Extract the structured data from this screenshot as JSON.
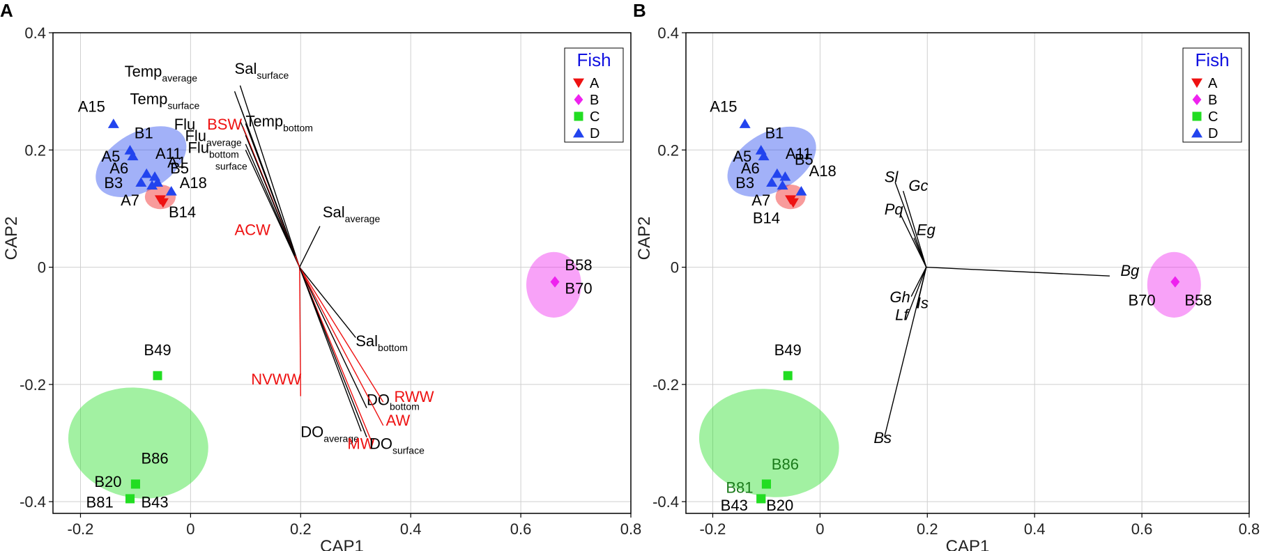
{
  "colors": {
    "A": "#ee1111",
    "B": "#ee22ee",
    "C": "#22dd22",
    "D": "#2244ee",
    "env_black": "#000000",
    "env_red": "#ee1111",
    "legend_title": "#1010e0"
  },
  "chart_data": [
    {
      "panel": "A",
      "type": "scatter",
      "xlabel": "CAP1",
      "ylabel": "CAP2",
      "xlim": [
        -0.25,
        0.8
      ],
      "ylim": [
        -0.42,
        0.4
      ],
      "xticks": [
        -0.2,
        0,
        0.2,
        0.4,
        0.6,
        0.8
      ],
      "xtick_labels": [
        "-0.2",
        "0",
        "0.2",
        "0.4",
        "0.6",
        "0.8"
      ],
      "yticks": [
        -0.4,
        -0.2,
        0,
        0.2,
        0.4
      ],
      "ytick_labels": [
        "-0.4",
        "-0.2",
        "0",
        "0.2",
        "0.4"
      ],
      "grid": true,
      "legend": {
        "title": "Fish",
        "placement": "top-right",
        "entries": [
          "A",
          "B",
          "C",
          "D"
        ]
      },
      "ellipses": [
        {
          "group": "D",
          "cx": -0.09,
          "cy": 0.18,
          "rx": 0.09,
          "ry": 0.05,
          "angle_deg": 30
        },
        {
          "group": "A",
          "cx": -0.055,
          "cy": 0.12,
          "rx": 0.028,
          "ry": 0.021,
          "angle_deg": 0
        },
        {
          "group": "B",
          "cx": 0.66,
          "cy": -0.03,
          "rx": 0.05,
          "ry": 0.056,
          "angle_deg": 0
        },
        {
          "group": "C",
          "cx": -0.095,
          "cy": -0.3,
          "rx": 0.1,
          "ry": 0.12,
          "angle_deg": 80
        }
      ],
      "points": [
        {
          "label": "A15",
          "group": "D",
          "x": -0.14,
          "y": 0.245,
          "lx": -0.18,
          "ly": 0.265
        },
        {
          "label": "B1",
          "group": "D",
          "x": -0.11,
          "y": 0.2,
          "lx": -0.085,
          "ly": 0.22
        },
        {
          "label": "A5",
          "group": "D",
          "x": -0.105,
          "y": 0.19,
          "lx": -0.145,
          "ly": 0.18
        },
        {
          "label": "A11",
          "group": "D",
          "x": -0.065,
          "y": 0.155,
          "lx": -0.04,
          "ly": 0.185
        },
        {
          "label": "A6",
          "group": "D",
          "x": -0.08,
          "y": 0.16,
          "lx": -0.13,
          "ly": 0.16
        },
        {
          "label": "A1",
          "group": "D",
          "x": -0.06,
          "y": 0.145,
          "lx": -0.025,
          "ly": 0.17
        },
        {
          "label": "B5",
          "group": "D",
          "x": -0.07,
          "y": 0.14,
          "lx": -0.02,
          "ly": 0.16
        },
        {
          "label": "B3",
          "group": "D",
          "x": -0.09,
          "y": 0.145,
          "lx": -0.14,
          "ly": 0.135
        },
        {
          "label": "A18",
          "group": "D",
          "x": -0.035,
          "y": 0.13,
          "lx": 0.005,
          "ly": 0.135
        },
        {
          "label": "A7",
          "group": "A",
          "x": -0.055,
          "y": 0.115,
          "lx": -0.11,
          "ly": 0.105
        },
        {
          "label": "B14",
          "group": "A",
          "x": -0.05,
          "y": 0.11,
          "lx": -0.015,
          "ly": 0.085
        },
        {
          "label": "B58",
          "group": "B",
          "x": 0.662,
          "y": -0.025,
          "lx": 0.705,
          "ly": -0.005
        },
        {
          "label": "B70",
          "group": "B",
          "x": 0.662,
          "y": -0.025,
          "lx": 0.705,
          "ly": -0.045
        },
        {
          "label": "B49",
          "group": "C",
          "x": -0.06,
          "y": -0.185,
          "lx": -0.06,
          "ly": -0.15
        },
        {
          "label": "B86",
          "group": "C",
          "x": -0.1,
          "y": -0.37,
          "lx": -0.065,
          "ly": -0.335
        },
        {
          "label": "B20",
          "group": "C",
          "x": -0.1,
          "y": -0.37,
          "lx": -0.15,
          "ly": -0.375
        },
        {
          "label": "B81",
          "group": "C",
          "x": -0.11,
          "y": -0.395,
          "lx": -0.165,
          "ly": -0.41
        },
        {
          "label": "B43",
          "group": "C",
          "x": -0.11,
          "y": -0.395,
          "lx": -0.065,
          "ly": -0.41
        }
      ],
      "origin": [
        0.198,
        0.0
      ],
      "vectors": [
        {
          "label": "Temp",
          "sub": "average",
          "color": "black",
          "x": 0.08,
          "y": 0.3,
          "lx": -0.12,
          "ly": 0.325
        },
        {
          "label": "Sal",
          "sub": "surface",
          "color": "black",
          "x": 0.09,
          "y": 0.31,
          "lx": 0.08,
          "ly": 0.33
        },
        {
          "label": "Temp",
          "sub": "surface",
          "color": "black",
          "x": 0.09,
          "y": 0.275,
          "lx": -0.11,
          "ly": 0.278
        },
        {
          "label": "Temp",
          "sub": "bottom",
          "color": "black",
          "x": 0.1,
          "y": 0.245,
          "lx": 0.1,
          "ly": 0.24
        },
        {
          "label": "Flu",
          "sub": "",
          "color": "black",
          "x": 0.09,
          "y": 0.25,
          "lx": -0.03,
          "ly": 0.235
        },
        {
          "label": "BSW",
          "sub": "",
          "color": "red",
          "x": 0.095,
          "y": 0.24,
          "lx": 0.03,
          "ly": 0.235
        },
        {
          "label": "Flu",
          "sub": "average",
          "color": "black",
          "x": 0.1,
          "y": 0.225,
          "lx": -0.01,
          "ly": 0.215
        },
        {
          "label": "Flu",
          "sub": "bottom",
          "color": "black",
          "x": 0.1,
          "y": 0.21,
          "lx": -0.005,
          "ly": 0.195
        },
        {
          "label": "",
          "sub": "surface",
          "color": "black",
          "x": 0.1,
          "y": 0.2,
          "lx": 0.045,
          "ly": 0.175
        },
        {
          "label": "Sal",
          "sub": "average",
          "color": "black",
          "x": 0.235,
          "y": 0.07,
          "lx": 0.24,
          "ly": 0.085
        },
        {
          "label": "ACW",
          "sub": "",
          "color": "red",
          "x": 0.19,
          "y": 0.02,
          "lx": 0.08,
          "ly": 0.055
        },
        {
          "label": "Sal",
          "sub": "bottom",
          "color": "black",
          "x": 0.3,
          "y": -0.12,
          "lx": 0.3,
          "ly": -0.135
        },
        {
          "label": "NVWW",
          "sub": "",
          "color": "red",
          "x": 0.2,
          "y": -0.22,
          "lx": 0.11,
          "ly": -0.2
        },
        {
          "label": "DO",
          "sub": "bottom",
          "color": "black",
          "x": 0.32,
          "y": -0.24,
          "lx": 0.32,
          "ly": -0.235
        },
        {
          "label": "RWW",
          "sub": "",
          "color": "red",
          "x": 0.35,
          "y": -0.23,
          "lx": 0.37,
          "ly": -0.23
        },
        {
          "label": "AW",
          "sub": "",
          "color": "red",
          "x": 0.35,
          "y": -0.27,
          "lx": 0.355,
          "ly": -0.27
        },
        {
          "label": "DO",
          "sub": "average",
          "color": "black",
          "x": 0.31,
          "y": -0.28,
          "lx": 0.2,
          "ly": -0.29
        },
        {
          "label": "MW",
          "sub": "",
          "color": "red",
          "x": 0.33,
          "y": -0.3,
          "lx": 0.285,
          "ly": -0.31
        },
        {
          "label": "DO",
          "sub": "surface",
          "color": "black",
          "x": 0.32,
          "y": -0.29,
          "lx": 0.325,
          "ly": -0.31
        }
      ]
    },
    {
      "panel": "B",
      "type": "scatter",
      "xlabel": "CAP1",
      "ylabel": "CAP2",
      "xlim": [
        -0.25,
        0.8
      ],
      "ylim": [
        -0.42,
        0.4
      ],
      "xticks": [
        -0.2,
        0,
        0.2,
        0.4,
        0.6,
        0.8
      ],
      "xtick_labels": [
        "-0.2",
        "0",
        "0.2",
        "0.4",
        "0.6",
        "0.8"
      ],
      "yticks": [
        -0.4,
        -0.2,
        0,
        0.2,
        0.4
      ],
      "ytick_labels": [
        "-0.4",
        "-0.2",
        "0",
        "0.2",
        "0.4"
      ],
      "grid": true,
      "legend": {
        "title": "Fish",
        "placement": "top-right",
        "entries": [
          "A",
          "B",
          "C",
          "D"
        ]
      },
      "ellipses": [
        {
          "group": "D",
          "cx": -0.09,
          "cy": 0.18,
          "rx": 0.09,
          "ry": 0.05,
          "angle_deg": 30
        },
        {
          "group": "A",
          "cx": -0.055,
          "cy": 0.12,
          "rx": 0.028,
          "ry": 0.021,
          "angle_deg": 0
        },
        {
          "group": "B",
          "cx": 0.66,
          "cy": -0.03,
          "rx": 0.05,
          "ry": 0.056,
          "angle_deg": 0
        },
        {
          "group": "C",
          "cx": -0.095,
          "cy": -0.3,
          "rx": 0.1,
          "ry": 0.12,
          "angle_deg": 80
        }
      ],
      "points": [
        {
          "label": "A15",
          "group": "D",
          "x": -0.14,
          "y": 0.245,
          "lx": -0.18,
          "ly": 0.265
        },
        {
          "label": "B1",
          "group": "D",
          "x": -0.11,
          "y": 0.2,
          "lx": -0.085,
          "ly": 0.22
        },
        {
          "label": "A5",
          "group": "D",
          "x": -0.105,
          "y": 0.19,
          "lx": -0.145,
          "ly": 0.18
        },
        {
          "label": "A11",
          "group": "D",
          "x": -0.065,
          "y": 0.155,
          "lx": -0.04,
          "ly": 0.185
        },
        {
          "label": "A6",
          "group": "D",
          "x": -0.08,
          "y": 0.16,
          "lx": -0.13,
          "ly": 0.16
        },
        {
          "label": "B5",
          "group": "D",
          "x": -0.07,
          "y": 0.14,
          "lx": -0.03,
          "ly": 0.175
        },
        {
          "label": "B3",
          "group": "D",
          "x": -0.09,
          "y": 0.145,
          "lx": -0.14,
          "ly": 0.135
        },
        {
          "label": "A18",
          "group": "D",
          "x": -0.035,
          "y": 0.13,
          "lx": 0.005,
          "ly": 0.155
        },
        {
          "label": "A7",
          "group": "A",
          "x": -0.055,
          "y": 0.115,
          "lx": -0.11,
          "ly": 0.105
        },
        {
          "label": "B14",
          "group": "A",
          "x": -0.05,
          "y": 0.11,
          "lx": -0.1,
          "ly": 0.075
        },
        {
          "label": "B70",
          "group": "B",
          "x": 0.662,
          "y": -0.025,
          "lx": 0.6,
          "ly": -0.065
        },
        {
          "label": "B58",
          "group": "B",
          "x": 0.662,
          "y": -0.025,
          "lx": 0.705,
          "ly": -0.065
        },
        {
          "label": "B49",
          "group": "C",
          "x": -0.06,
          "y": -0.185,
          "lx": -0.06,
          "ly": -0.15
        },
        {
          "label": "B86",
          "group": "C",
          "x": -0.1,
          "y": -0.37,
          "lx": -0.065,
          "ly": -0.345
        },
        {
          "label": "B81",
          "group": "C",
          "x": -0.1,
          "y": -0.37,
          "lx": -0.15,
          "ly": -0.385
        },
        {
          "label": "B43",
          "group": "C",
          "x": -0.11,
          "y": -0.395,
          "lx": -0.16,
          "ly": -0.415
        },
        {
          "label": "B20",
          "group": "C",
          "x": -0.11,
          "y": -0.395,
          "lx": -0.075,
          "ly": -0.415
        }
      ],
      "origin": [
        0.198,
        0.0
      ],
      "vectors": [
        {
          "label": "Sl",
          "x": 0.14,
          "y": 0.145,
          "lx": 0.12,
          "ly": 0.145
        },
        {
          "label": "Gc",
          "x": 0.155,
          "y": 0.13,
          "lx": 0.165,
          "ly": 0.13
        },
        {
          "label": "Pq",
          "x": 0.15,
          "y": 0.09,
          "lx": 0.12,
          "ly": 0.09
        },
        {
          "label": "Eg",
          "x": 0.175,
          "y": 0.05,
          "lx": 0.18,
          "ly": 0.055
        },
        {
          "label": "Bg",
          "x": 0.54,
          "y": -0.015,
          "lx": 0.56,
          "ly": -0.015
        },
        {
          "label": "Gh",
          "x": 0.17,
          "y": -0.05,
          "lx": 0.13,
          "ly": -0.06
        },
        {
          "label": "Is",
          "x": 0.18,
          "y": -0.07,
          "lx": 0.18,
          "ly": -0.07
        },
        {
          "label": "Lf",
          "x": 0.16,
          "y": -0.09,
          "lx": 0.14,
          "ly": -0.09
        },
        {
          "label": "Bs",
          "x": 0.12,
          "y": -0.29,
          "lx": 0.1,
          "ly": -0.3
        }
      ]
    }
  ]
}
